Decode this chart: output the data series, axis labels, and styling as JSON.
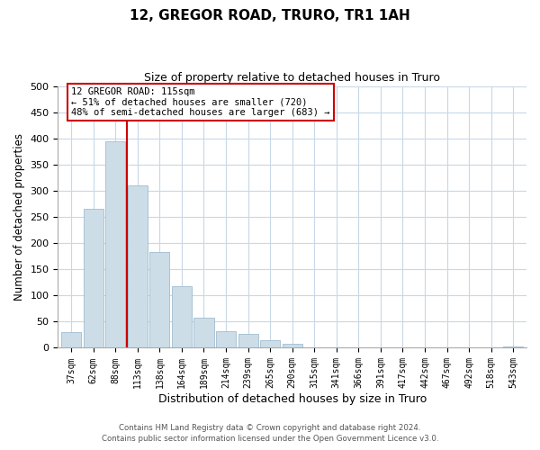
{
  "title1": "12, GREGOR ROAD, TRURO, TR1 1AH",
  "title2": "Size of property relative to detached houses in Truro",
  "xlabel": "Distribution of detached houses by size in Truro",
  "ylabel": "Number of detached properties",
  "bar_labels": [
    "37sqm",
    "62sqm",
    "88sqm",
    "113sqm",
    "138sqm",
    "164sqm",
    "189sqm",
    "214sqm",
    "239sqm",
    "265sqm",
    "290sqm",
    "315sqm",
    "341sqm",
    "366sqm",
    "391sqm",
    "417sqm",
    "442sqm",
    "467sqm",
    "492sqm",
    "518sqm",
    "543sqm"
  ],
  "bar_values": [
    30,
    265,
    395,
    310,
    183,
    118,
    58,
    32,
    26,
    15,
    7,
    0,
    0,
    0,
    0,
    0,
    0,
    0,
    0,
    0,
    2
  ],
  "bar_color": "#ccdde8",
  "bar_edge_color": "#a0bcd0",
  "vline_color": "#cc0000",
  "annotation_line1": "12 GREGOR ROAD: 115sqm",
  "annotation_line2": "← 51% of detached houses are smaller (720)",
  "annotation_line3": "48% of semi-detached houses are larger (683) →",
  "annotation_box_color": "#ffffff",
  "annotation_box_edge": "#cc0000",
  "ylim": [
    0,
    500
  ],
  "yticks": [
    0,
    50,
    100,
    150,
    200,
    250,
    300,
    350,
    400,
    450,
    500
  ],
  "footer1": "Contains HM Land Registry data © Crown copyright and database right 2024.",
  "footer2": "Contains public sector information licensed under the Open Government Licence v3.0.",
  "bg_color": "#ffffff",
  "grid_color": "#c8d8e8"
}
